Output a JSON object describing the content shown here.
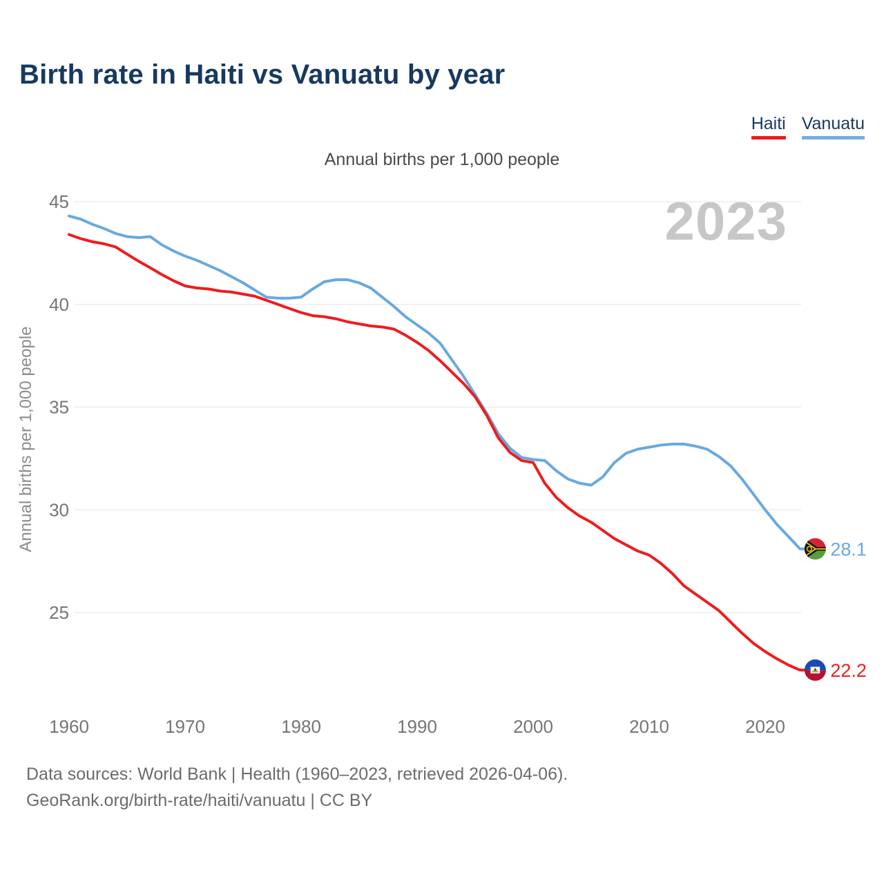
{
  "header": {
    "title": "Birth rate in Haiti vs Vanuatu by year",
    "subtitle": "Annual births per 1,000 people"
  },
  "legend": {
    "position": "top-right",
    "items": [
      {
        "label": "Haiti",
        "color": "#ee1c1e"
      },
      {
        "label": "Vanuatu",
        "color": "#74ade4"
      }
    ]
  },
  "chart_data": {
    "type": "line",
    "title": "Birth rate in Haiti vs Vanuatu by year",
    "unit_caption": "Annual births per 1,000 people",
    "ylabel": "Annual births per 1,000 people",
    "xlabel": "",
    "watermark": "2023",
    "grid": "horizontal-only",
    "yticks": [
      25,
      30,
      35,
      40,
      45
    ],
    "xticks": [
      1960,
      1970,
      1980,
      1990,
      2000,
      2010,
      2020
    ],
    "ylim": [
      21.5,
      45.5
    ],
    "xlim": [
      1960,
      2023
    ],
    "x": [
      1960,
      1961,
      1962,
      1963,
      1964,
      1965,
      1966,
      1967,
      1968,
      1969,
      1970,
      1971,
      1972,
      1973,
      1974,
      1975,
      1976,
      1977,
      1978,
      1979,
      1980,
      1981,
      1982,
      1983,
      1984,
      1985,
      1986,
      1987,
      1988,
      1989,
      1990,
      1991,
      1992,
      1993,
      1994,
      1995,
      1996,
      1997,
      1998,
      1999,
      2000,
      2001,
      2002,
      2003,
      2004,
      2005,
      2006,
      2007,
      2008,
      2009,
      2010,
      2011,
      2012,
      2013,
      2014,
      2015,
      2016,
      2017,
      2018,
      2019,
      2020,
      2021,
      2022,
      2023
    ],
    "series": [
      {
        "name": "Haiti",
        "color": "#ee1c1e",
        "flag": "haiti-flag",
        "end_label": "22.2",
        "values": [
          43.4,
          43.2,
          43.05,
          42.95,
          42.8,
          42.45,
          42.1,
          41.78,
          41.45,
          41.15,
          40.9,
          40.8,
          40.75,
          40.65,
          40.6,
          40.5,
          40.4,
          40.2,
          40.0,
          39.8,
          39.6,
          39.45,
          39.4,
          39.3,
          39.15,
          39.05,
          38.95,
          38.9,
          38.8,
          38.5,
          38.15,
          37.75,
          37.25,
          36.7,
          36.15,
          35.5,
          34.6,
          33.5,
          32.8,
          32.4,
          32.3,
          31.3,
          30.6,
          30.1,
          29.7,
          29.4,
          29.0,
          28.6,
          28.3,
          28.0,
          27.8,
          27.4,
          26.9,
          26.3,
          25.9,
          25.5,
          25.1,
          24.55,
          24.0,
          23.5,
          23.1,
          22.75,
          22.45,
          22.2
        ]
      },
      {
        "name": "Vanuatu",
        "color": "#68a9e0",
        "flag": "vanuatu-flag",
        "end_label": "28.1",
        "values": [
          44.3,
          44.15,
          43.9,
          43.7,
          43.45,
          43.3,
          43.25,
          43.3,
          42.9,
          42.6,
          42.35,
          42.15,
          41.9,
          41.65,
          41.35,
          41.05,
          40.7,
          40.35,
          40.3,
          40.3,
          40.35,
          40.75,
          41.1,
          41.2,
          41.2,
          41.05,
          40.8,
          40.35,
          39.9,
          39.4,
          39.0,
          38.6,
          38.1,
          37.3,
          36.5,
          35.6,
          34.7,
          33.7,
          33.0,
          32.55,
          32.45,
          32.4,
          31.9,
          31.5,
          31.3,
          31.2,
          31.6,
          32.3,
          32.75,
          32.95,
          33.05,
          33.15,
          33.2,
          33.2,
          33.1,
          32.95,
          32.6,
          32.15,
          31.5,
          30.75,
          30.0,
          29.3,
          28.7,
          28.1
        ]
      }
    ]
  },
  "footer": {
    "line1": "Data sources: World Bank | Health (1960–2023, retrieved 2026-04-06).",
    "line2": "GeoRank.org/birth-rate/haiti/vanuatu | CC BY"
  }
}
